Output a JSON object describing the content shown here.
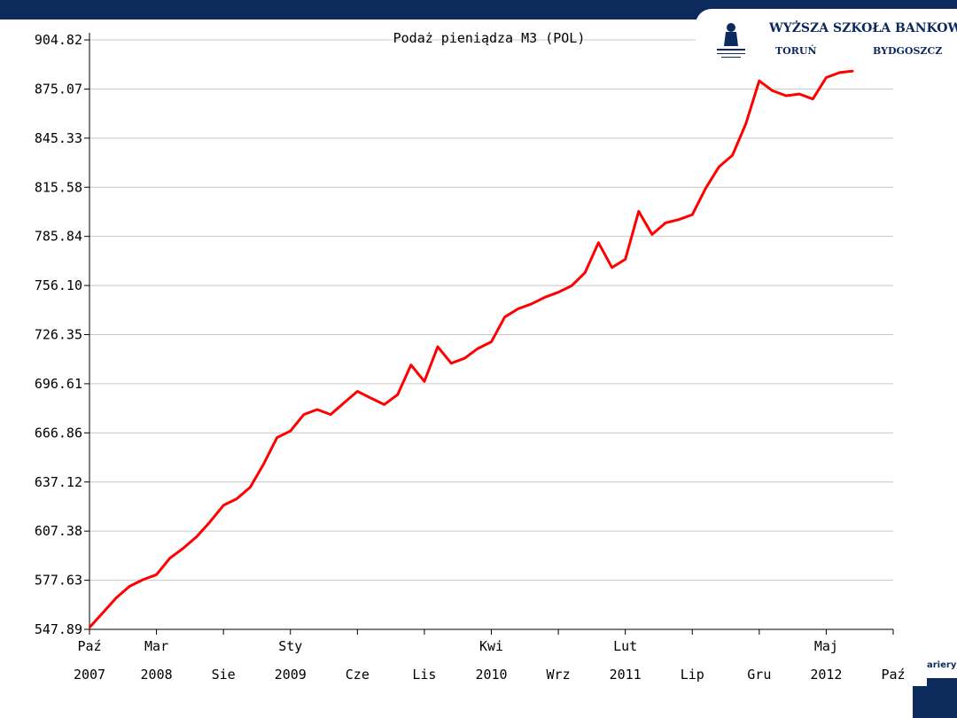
{
  "logo": {
    "name": "WYŻSZA SZKOŁA BANKOWA",
    "city_left": "TORUŃ",
    "city_right": "BYDGOSZCZ"
  },
  "footer": {
    "fragment": "ariery"
  },
  "colors": {
    "navy": "#0d2a5c",
    "line": "#ff0000",
    "grid": "#c8c8c8"
  },
  "chart_data": {
    "type": "line",
    "title": "Podaż pieniądza M3 (POL)",
    "xlabel": "",
    "ylabel": "",
    "grid": true,
    "ylim": [
      547.89,
      904.82
    ],
    "yticks": [
      "547.89",
      "577.63",
      "607.38",
      "637.12",
      "666.86",
      "696.61",
      "726.35",
      "756.10",
      "785.84",
      "815.58",
      "845.33",
      "875.07",
      "904.82"
    ],
    "xlim": [
      0,
      60
    ],
    "xticks": [
      {
        "m": 0,
        "month": "Paź",
        "year": "2007"
      },
      {
        "m": 5,
        "month": "Mar",
        "year": "2008"
      },
      {
        "m": 10,
        "month": "",
        "year": "Sie"
      },
      {
        "m": 15,
        "month": "Sty",
        "year": "2009"
      },
      {
        "m": 20,
        "month": "",
        "year": "Cze"
      },
      {
        "m": 25,
        "month": "",
        "year": "Lis"
      },
      {
        "m": 30,
        "month": "Kwi",
        "year": "2010"
      },
      {
        "m": 35,
        "month": "",
        "year": "Wrz"
      },
      {
        "m": 40,
        "month": "Lut",
        "year": "2011"
      },
      {
        "m": 45,
        "month": "",
        "year": "Lip"
      },
      {
        "m": 50,
        "month": "",
        "year": "Gru"
      },
      {
        "m": 55,
        "month": "Maj",
        "year": "2012"
      },
      {
        "m": 60,
        "month": "",
        "year": "Paź"
      }
    ],
    "series": [
      {
        "x": [
          0,
          1,
          2,
          3,
          4,
          5,
          6,
          7,
          8,
          9,
          10,
          11,
          12,
          13,
          14,
          15,
          16,
          17,
          18,
          19,
          20,
          21,
          22,
          23,
          24,
          25,
          26,
          27,
          28,
          29,
          30,
          31,
          32,
          33,
          34,
          35,
          36,
          37,
          38,
          39,
          40,
          41,
          42,
          43,
          44,
          45,
          46,
          47,
          48,
          49,
          50,
          51,
          52,
          53,
          54,
          55,
          56,
          57
        ],
        "y": [
          549,
          558,
          567,
          574,
          578,
          581,
          591,
          597,
          604,
          613,
          623,
          627,
          634,
          648,
          664,
          668,
          678,
          681,
          678,
          685,
          692,
          688,
          684,
          690,
          708,
          698,
          719,
          709,
          712,
          718,
          722,
          737,
          742,
          745,
          749,
          752,
          756,
          764,
          782,
          767,
          772,
          801,
          787,
          794,
          796,
          799,
          815,
          828,
          835,
          854,
          880,
          874,
          871,
          872,
          869,
          882,
          885,
          886
        ]
      }
    ]
  }
}
